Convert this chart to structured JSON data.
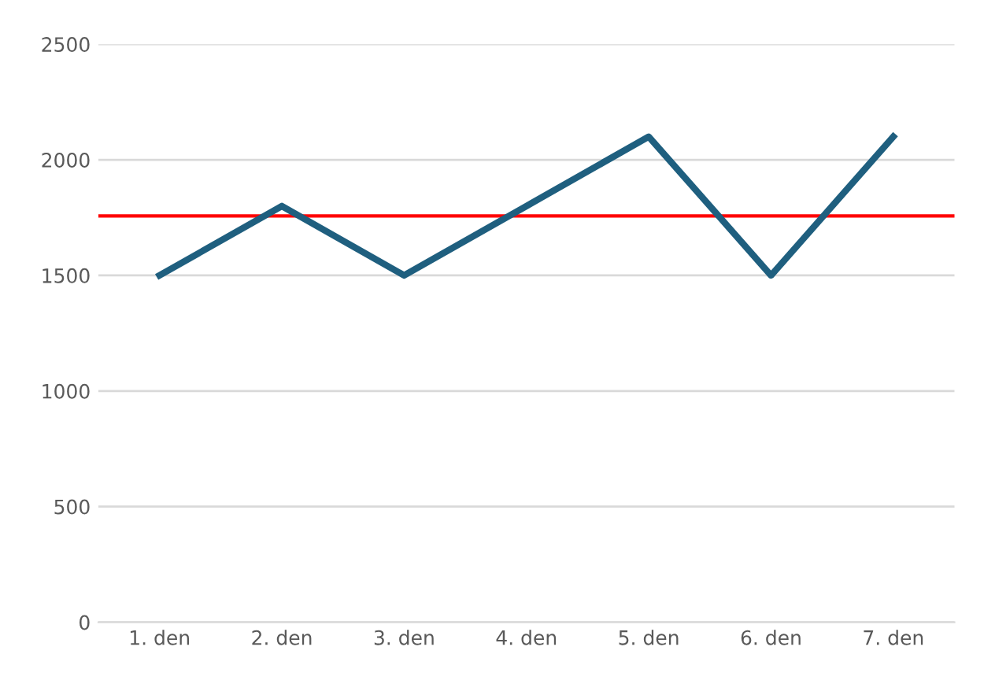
{
  "chart_data": {
    "type": "line",
    "categories": [
      "1. den",
      "2. den",
      "3. den",
      "4. den",
      "5. den",
      "6. den",
      "7. den"
    ],
    "series": [
      {
        "color": "#1f5f7f",
        "values": [
          1500,
          1800,
          1500,
          1800,
          2100,
          1500,
          2100
        ]
      }
    ],
    "ylim": [
      0,
      2500
    ],
    "yticks": [
      0,
      500,
      1000,
      1500,
      2000,
      2500
    ],
    "grid": "y",
    "legend": false,
    "marker": "none",
    "line_style": "solid",
    "ref_lines": [
      {
        "axis": "y",
        "value": 1757,
        "label": null,
        "color": "#ff0000",
        "line_style": "solid"
      }
    ]
  }
}
